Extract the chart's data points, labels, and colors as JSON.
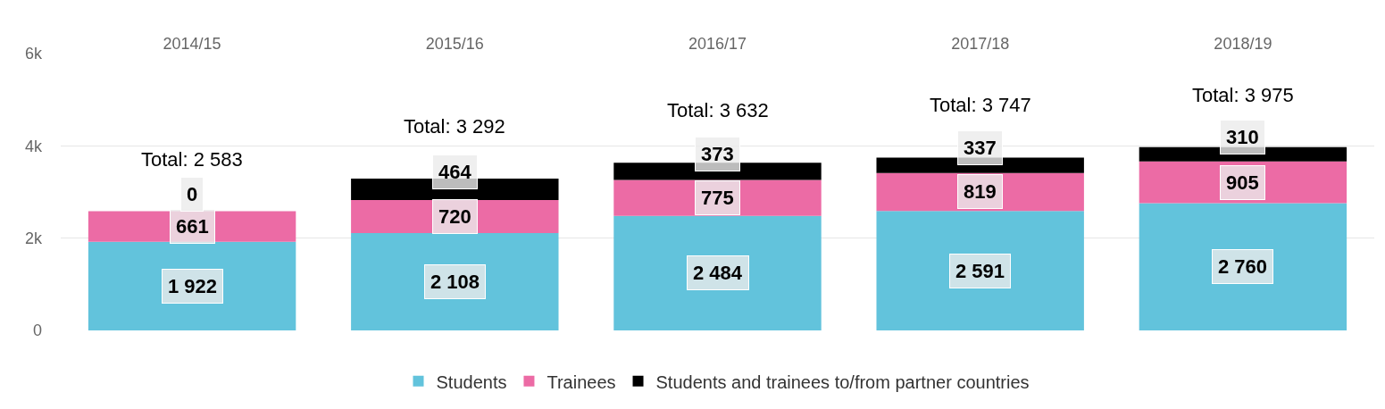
{
  "chart_data": {
    "type": "bar",
    "stacked": true,
    "categories": [
      "2014/15",
      "2015/16",
      "2016/17",
      "2017/18",
      "2018/19"
    ],
    "series": [
      {
        "name": "Students",
        "color": "#62c3dc",
        "values": [
          1922,
          2108,
          2484,
          2591,
          2760
        ],
        "value_labels": [
          "1 922",
          "2 108",
          "2 484",
          "2 591",
          "2 760"
        ]
      },
      {
        "name": "Trainees",
        "color": "#ec6ba5",
        "values": [
          661,
          720,
          775,
          819,
          905
        ],
        "value_labels": [
          "661",
          "720",
          "775",
          "819",
          "905"
        ]
      },
      {
        "name": "Students and trainees to/from partner countries",
        "color": "#000000",
        "values": [
          0,
          464,
          373,
          337,
          310
        ],
        "value_labels": [
          "0",
          "464",
          "373",
          "337",
          "310"
        ]
      }
    ],
    "totals": [
      "Total: 2 583",
      "Total: 3 292",
      "Total: 3 632",
      "Total: 3 747",
      "Total: 3 975"
    ],
    "ylim": [
      0,
      6000
    ],
    "yticks": [
      0,
      {
        "value": 2000,
        "label": "2k"
      },
      {
        "value": 4000,
        "label": "4k"
      },
      {
        "value": 6000,
        "label": "6k"
      }
    ],
    "grid": "y",
    "legend": "bottom"
  }
}
